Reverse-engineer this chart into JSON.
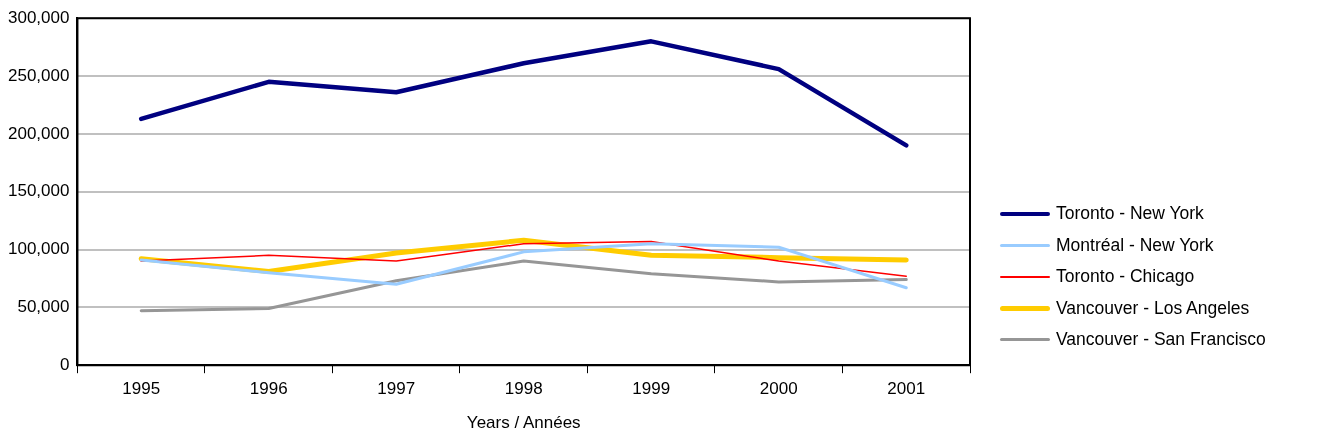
{
  "chart_data": {
    "type": "line",
    "xlabel": "Years / Années",
    "categories": [
      "1995",
      "1996",
      "1997",
      "1998",
      "1999",
      "2000",
      "2001"
    ],
    "series": [
      {
        "name": "Toronto - New York",
        "color": "#000080",
        "values": [
          213000,
          245000,
          236000,
          261000,
          280000,
          256000,
          190000
        ]
      },
      {
        "name": "Montréal - New York",
        "color": "#99ccff",
        "values": [
          91000,
          80000,
          70000,
          98000,
          105000,
          102000,
          67000
        ]
      },
      {
        "name": "Toronto - Chicago",
        "color": "#ff0000",
        "values": [
          90000,
          95000,
          90000,
          105000,
          107000,
          90000,
          77000
        ]
      },
      {
        "name": "Vancouver - Los Angeles",
        "color": "#ffcc00",
        "values": [
          92000,
          81000,
          97000,
          108000,
          95000,
          93000,
          91000
        ]
      },
      {
        "name": "Vancouver - San Francisco",
        "color": "#969696",
        "values": [
          47000,
          49000,
          73000,
          90000,
          79000,
          72000,
          74000
        ]
      }
    ],
    "ylim": [
      0,
      300000
    ],
    "yticks": [
      0,
      {
        "value": 50000,
        "label": "50,000"
      },
      {
        "value": 100000,
        "label": "100,000"
      },
      {
        "value": 150000,
        "label": "150,000"
      },
      {
        "value": 200000,
        "label": "200,000"
      },
      {
        "value": 250000,
        "label": "250,000"
      },
      {
        "value": 300000,
        "label": "300,000"
      }
    ],
    "grid": "y",
    "legend": "right",
    "marker": "none",
    "line_style": "solid"
  }
}
